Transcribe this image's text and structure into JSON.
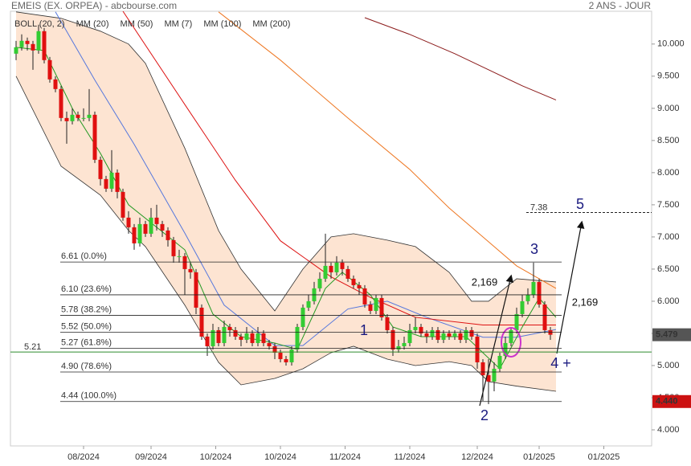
{
  "header": {
    "title": "EMEIS (EX. ORPEA) - abcbourse.com",
    "period": "2 ANS - JOUR"
  },
  "chart_data": {
    "type": "candlestick",
    "xlim": [
      -1,
      113
    ],
    "ylim": [
      3.75,
      10.51
    ],
    "xticks": [
      {
        "value": 12,
        "label": "08/2024"
      },
      {
        "value": 24,
        "label": "09/2024"
      },
      {
        "value": 35.5,
        "label": "10/2024"
      },
      {
        "value": 47,
        "label": "10/2024"
      },
      {
        "value": 58.5,
        "label": "11/2024"
      },
      {
        "value": 70,
        "label": "11/2024"
      },
      {
        "value": 82,
        "label": "12/2024"
      },
      {
        "value": 93,
        "label": "01/2025"
      },
      {
        "value": 104.5,
        "label": "01/2025"
      }
    ],
    "yticks": [
      {
        "value": 4,
        "label": "4.000"
      },
      {
        "value": 4.5,
        "label": "4.500"
      },
      {
        "value": 5,
        "label": "5.000"
      },
      {
        "value": 5.5,
        "label": "5.500"
      },
      {
        "value": 6,
        "label": "6.000"
      },
      {
        "value": 6.5,
        "label": "6.500"
      },
      {
        "value": 7,
        "label": "7.000"
      },
      {
        "value": 7.5,
        "label": "7.500"
      },
      {
        "value": 8,
        "label": "8.000"
      },
      {
        "value": 8.5,
        "label": "8.500"
      },
      {
        "value": 9,
        "label": "9.000"
      },
      {
        "value": 9.5,
        "label": "9.500"
      },
      {
        "value": 10,
        "label": "10.000"
      }
    ],
    "up_color": "#33cc33",
    "down_color": "#e01010",
    "ohlc": [
      [
        9.85,
        10.05,
        9.75,
        9.95
      ],
      [
        9.95,
        10.15,
        9.9,
        10.05
      ],
      [
        10.05,
        10.1,
        9.9,
        10.0
      ],
      [
        10.0,
        10.05,
        9.6,
        9.9
      ],
      [
        9.9,
        10.3,
        9.85,
        10.2
      ],
      [
        10.2,
        10.25,
        9.7,
        9.75
      ],
      [
        9.75,
        9.8,
        9.4,
        9.45
      ],
      [
        9.45,
        9.5,
        9.25,
        9.3
      ],
      [
        9.3,
        9.35,
        8.8,
        8.85
      ],
      [
        8.85,
        8.95,
        8.45,
        8.8
      ],
      [
        8.8,
        9.0,
        8.75,
        8.9
      ],
      [
        8.9,
        8.95,
        8.8,
        8.85
      ],
      [
        8.85,
        9.0,
        8.8,
        8.85
      ],
      [
        8.85,
        9.3,
        8.8,
        8.9
      ],
      [
        8.9,
        8.95,
        8.15,
        8.2
      ],
      [
        8.2,
        8.25,
        7.8,
        7.9
      ],
      [
        7.9,
        7.95,
        7.7,
        7.75
      ],
      [
        7.75,
        8.35,
        7.7,
        8.0
      ],
      [
        8.0,
        8.05,
        7.6,
        7.7
      ],
      [
        7.7,
        7.75,
        7.25,
        7.3
      ],
      [
        7.3,
        7.4,
        7.05,
        7.15
      ],
      [
        7.15,
        7.2,
        6.8,
        6.9
      ],
      [
        6.9,
        7.3,
        6.85,
        7.2
      ],
      [
        7.2,
        7.25,
        7.0,
        7.05
      ],
      [
        7.05,
        7.45,
        7.0,
        7.3
      ],
      [
        7.3,
        7.5,
        7.1,
        7.2
      ],
      [
        7.2,
        7.25,
        7.0,
        7.1
      ],
      [
        7.1,
        7.15,
        6.85,
        6.95
      ],
      [
        6.95,
        7.0,
        6.6,
        6.7
      ],
      [
        6.7,
        6.8,
        6.6,
        6.7
      ],
      [
        6.7,
        6.75,
        6.1,
        6.5
      ],
      [
        6.5,
        6.6,
        6.35,
        6.45
      ],
      [
        6.45,
        6.5,
        5.8,
        5.9
      ],
      [
        5.9,
        5.95,
        5.4,
        5.45
      ],
      [
        5.45,
        5.5,
        5.15,
        5.3
      ],
      [
        5.3,
        5.65,
        5.25,
        5.55
      ],
      [
        5.55,
        5.6,
        5.3,
        5.35
      ],
      [
        5.35,
        5.7,
        5.3,
        5.6
      ],
      [
        5.6,
        5.65,
        5.45,
        5.55
      ],
      [
        5.55,
        5.6,
        5.4,
        5.45
      ],
      [
        5.45,
        5.5,
        5.3,
        5.4
      ],
      [
        5.4,
        5.6,
        5.35,
        5.5
      ],
      [
        5.5,
        5.55,
        5.3,
        5.35
      ],
      [
        5.35,
        5.6,
        5.3,
        5.5
      ],
      [
        5.5,
        5.55,
        5.3,
        5.35
      ],
      [
        5.35,
        5.4,
        5.25,
        5.3
      ],
      [
        5.3,
        5.35,
        5.1,
        5.2
      ],
      [
        5.2,
        5.25,
        5.05,
        5.1
      ],
      [
        5.1,
        5.15,
        5.0,
        5.05
      ],
      [
        5.05,
        5.3,
        5.0,
        5.25
      ],
      [
        5.25,
        5.65,
        5.2,
        5.6
      ],
      [
        5.6,
        5.95,
        5.55,
        5.9
      ],
      [
        5.9,
        6.1,
        5.85,
        6.0
      ],
      [
        6.0,
        6.3,
        5.95,
        6.2
      ],
      [
        6.2,
        6.45,
        6.15,
        6.35
      ],
      [
        6.35,
        7.05,
        6.3,
        6.55
      ],
      [
        6.55,
        6.6,
        6.35,
        6.45
      ],
      [
        6.45,
        6.7,
        6.4,
        6.6
      ],
      [
        6.6,
        6.65,
        6.4,
        6.5
      ],
      [
        6.5,
        6.55,
        6.3,
        6.35
      ],
      [
        6.35,
        6.4,
        6.2,
        6.25
      ],
      [
        6.25,
        6.3,
        6.1,
        6.2
      ],
      [
        6.2,
        6.25,
        5.9,
        5.95
      ],
      [
        5.95,
        6.0,
        5.8,
        5.85
      ],
      [
        5.85,
        6.1,
        5.8,
        6.05
      ],
      [
        6.05,
        6.1,
        5.7,
        5.75
      ],
      [
        5.75,
        5.8,
        5.5,
        5.55
      ],
      [
        5.55,
        5.6,
        5.15,
        5.25
      ],
      [
        5.25,
        5.4,
        5.2,
        5.3
      ],
      [
        5.3,
        5.45,
        5.25,
        5.35
      ],
      [
        5.35,
        5.65,
        5.3,
        5.55
      ],
      [
        5.55,
        5.75,
        5.5,
        5.6
      ],
      [
        5.6,
        5.65,
        5.45,
        5.5
      ],
      [
        5.5,
        5.55,
        5.35,
        5.45
      ],
      [
        5.45,
        5.6,
        5.4,
        5.55
      ],
      [
        5.55,
        5.6,
        5.35,
        5.4
      ],
      [
        5.4,
        5.55,
        5.35,
        5.5
      ],
      [
        5.5,
        5.55,
        5.4,
        5.45
      ],
      [
        5.45,
        5.55,
        5.4,
        5.5
      ],
      [
        5.5,
        5.55,
        5.35,
        5.4
      ],
      [
        5.4,
        5.6,
        5.35,
        5.55
      ],
      [
        5.55,
        5.6,
        5.4,
        5.45
      ],
      [
        5.45,
        5.5,
        4.95,
        5.05
      ],
      [
        5.05,
        5.1,
        4.45,
        4.85
      ],
      [
        4.85,
        5.1,
        4.4,
        4.75
      ],
      [
        4.75,
        5.05,
        4.6,
        4.95
      ],
      [
        4.95,
        5.2,
        4.9,
        5.15
      ],
      [
        5.15,
        5.45,
        5.1,
        5.35
      ],
      [
        5.35,
        5.6,
        5.3,
        5.55
      ],
      [
        5.55,
        5.9,
        5.5,
        5.8
      ],
      [
        5.8,
        6.1,
        5.75,
        6.0
      ],
      [
        6.0,
        6.2,
        5.95,
        6.1
      ],
      [
        6.1,
        6.6,
        6.05,
        6.3
      ],
      [
        6.3,
        6.35,
        5.9,
        5.95
      ],
      [
        5.95,
        6.0,
        5.5,
        5.55
      ],
      [
        5.55,
        5.6,
        5.4,
        5.479
      ]
    ],
    "bollinger": {
      "name": "BOLL (20, 2)",
      "color": "#333333",
      "fill": "#fde4d2",
      "x": [
        0,
        8,
        15,
        20,
        23,
        30,
        36,
        40,
        46,
        51,
        56,
        60,
        66,
        71,
        77,
        81,
        84,
        89,
        96
      ],
      "upper": [
        10.5,
        10.4,
        10.2,
        10.0,
        9.7,
        8.38,
        7.1,
        6.5,
        5.85,
        6.5,
        7.0,
        7.05,
        6.95,
        6.85,
        6.45,
        6.0,
        6.0,
        6.35,
        6.3
      ],
      "lower": [
        9.5,
        8.1,
        7.65,
        7.1,
        6.85,
        5.94,
        5.05,
        4.7,
        4.8,
        4.95,
        5.2,
        5.3,
        5.1,
        5.0,
        5.06,
        5.0,
        4.75,
        4.68,
        4.6
      ]
    },
    "lines": [
      {
        "name": "MM (20)",
        "color": "#5577dd",
        "x": [
          7,
          14,
          21,
          30,
          37,
          46,
          51,
          59,
          66,
          73,
          83,
          89,
          96
        ],
        "values": [
          10.5,
          9.44,
          8.44,
          7.06,
          5.94,
          5.31,
          5.31,
          5.88,
          6.0,
          5.75,
          5.44,
          5.44,
          5.56
        ]
      },
      {
        "name": "MM (50)",
        "color": "#dd1111",
        "x": [
          19,
          30,
          39,
          47,
          56,
          63,
          71,
          83,
          96
        ],
        "values": [
          10.51,
          9.06,
          7.88,
          6.94,
          6.38,
          6.06,
          5.75,
          5.63,
          5.63
        ]
      },
      {
        "name": "MM (7)",
        "color": "#229922",
        "x": [
          0,
          5,
          10,
          15,
          20,
          25,
          30,
          35,
          40,
          46,
          50,
          55,
          58,
          63,
          67,
          72,
          80,
          83,
          86,
          90,
          93,
          96
        ],
        "values": [
          9.95,
          9.9,
          9.0,
          8.3,
          7.5,
          7.15,
          6.8,
          5.8,
          5.45,
          5.35,
          5.25,
          6.2,
          6.45,
          6.1,
          5.6,
          5.45,
          5.45,
          5.2,
          4.95,
          5.6,
          6.05,
          5.75
        ]
      },
      {
        "name": "MM (100)",
        "color": "#ee7722",
        "x": [
          36,
          47,
          59,
          70,
          77,
          83,
          89,
          96
        ],
        "values": [
          10.5,
          9.75,
          8.85,
          8.05,
          7.45,
          7.0,
          6.55,
          6.2
        ]
      },
      {
        "name": "MM (200)",
        "color": "#8b1a1a",
        "x": [
          62,
          70,
          78,
          84,
          90,
          96
        ],
        "values": [
          10.41,
          10.15,
          9.85,
          9.6,
          9.35,
          9.13
        ]
      }
    ],
    "fibonacci": [
      {
        "value": 6.61,
        "label": "6.61 (0.0%)"
      },
      {
        "value": 6.1,
        "label": "6.10 (23.6%)"
      },
      {
        "value": 5.78,
        "label": "5.78 (38.2%)"
      },
      {
        "value": 5.52,
        "label": "5.52 (50.0%)"
      },
      {
        "value": 5.27,
        "label": "5.27 (61.8%)"
      },
      {
        "value": 4.9,
        "label": "4.90 (78.6%)"
      },
      {
        "value": 4.44,
        "label": "4.44 (100.0%)"
      }
    ],
    "support": 5.21,
    "support_color": "#2e8b2e",
    "target": 7.38,
    "annotations": [
      "1",
      "2",
      "3",
      "4 +",
      "5",
      "2,169",
      "2,169"
    ],
    "last_price": 5.479,
    "low_price": {
      "value": 4.44,
      "label": "4.440"
    }
  }
}
